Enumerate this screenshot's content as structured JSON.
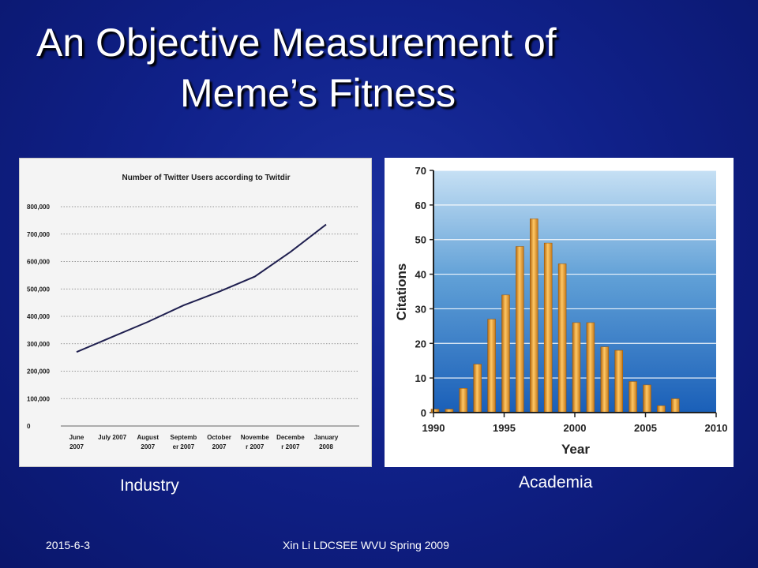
{
  "slide": {
    "title_line1": "An Objective Measurement of",
    "title_line2": "Meme’s Fitness",
    "caption_left": "Industry",
    "caption_right": "Academia",
    "footer_date": "2015-6-3",
    "footer_credit": "Xin Li LDCSEE WVU Spring 2009"
  },
  "chart_data": [
    {
      "type": "line",
      "title": "Number of Twitter Users according to Twitdir",
      "xlabel": "",
      "ylabel": "",
      "categories": [
        [
          "June",
          "2007"
        ],
        [
          "July 2007"
        ],
        [
          "August",
          "2007"
        ],
        [
          "Septemb",
          "er 2007"
        ],
        [
          "October",
          "2007"
        ],
        [
          "Novembe",
          "r 2007"
        ],
        [
          "Decembe",
          "r 2007"
        ],
        [
          "January",
          "2008"
        ]
      ],
      "series": [
        {
          "values": [
            270000,
            325000,
            380000,
            440000,
            490000,
            545000,
            635000,
            735000
          ],
          "color": "#1f1f4f"
        }
      ],
      "ylim": [
        0,
        800000
      ],
      "yticks": [
        0,
        100000,
        200000,
        300000,
        400000,
        500000,
        600000,
        700000,
        800000
      ],
      "ytick_labels": [
        "0",
        "100,000",
        "200,000",
        "300,000",
        "400,000",
        "500,000",
        "600,000",
        "700,000",
        "800,000"
      ],
      "grid": true,
      "legend": "none"
    },
    {
      "type": "bar",
      "title": "",
      "xlabel": "Year",
      "ylabel": "Citations",
      "x": [
        1990,
        1991,
        1992,
        1993,
        1994,
        1995,
        1996,
        1997,
        1998,
        1999,
        2000,
        2001,
        2002,
        2003,
        2004,
        2005,
        2006,
        2007
      ],
      "values": [
        1,
        1,
        7,
        14,
        27,
        34,
        48,
        56,
        49,
        43,
        26,
        26,
        19,
        18,
        9,
        8,
        2,
        4
      ],
      "xlim": [
        1990,
        2010
      ],
      "xticks": [
        1990,
        1995,
        2000,
        2005,
        2010
      ],
      "ylim": [
        0,
        70
      ],
      "yticks": [
        0,
        10,
        20,
        30,
        40,
        50,
        60,
        70
      ],
      "bar_color": "#f0a030",
      "grid": true,
      "legend": "none"
    }
  ]
}
